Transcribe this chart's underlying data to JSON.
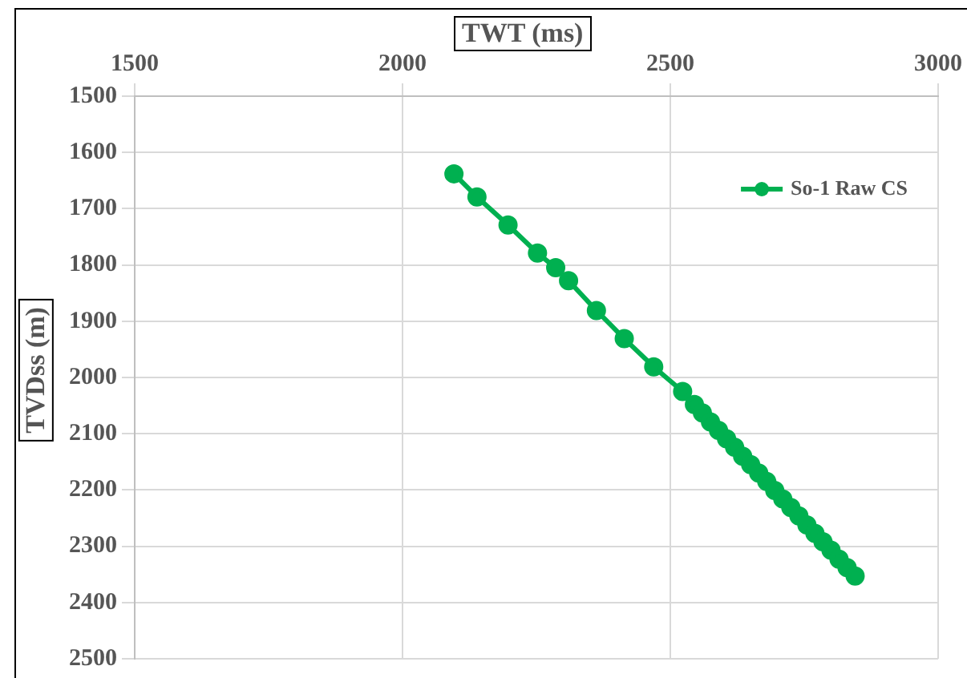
{
  "chart_data": {
    "type": "line",
    "xlabel": "TWT  (ms)",
    "ylabel": "TVDss  (m)",
    "xlim": [
      1500,
      3000
    ],
    "xticks": [
      1500,
      2000,
      2500,
      3000
    ],
    "ylim": [
      2500,
      1500
    ],
    "yticks": [
      1500,
      1600,
      1700,
      1800,
      1900,
      2000,
      2100,
      2200,
      2300,
      2400,
      2500
    ],
    "grid": true,
    "legend": "top right",
    "marker": "circle",
    "line_style": "solid",
    "series": [
      {
        "name": "So-1 Raw CS",
        "color": "#00b050",
        "x": [
          2096,
          2139,
          2197,
          2252,
          2286,
          2310,
          2362,
          2414,
          2469,
          2523,
          2545,
          2560,
          2575,
          2590,
          2605,
          2620,
          2635,
          2650,
          2665,
          2680,
          2695,
          2710,
          2725,
          2740,
          2755,
          2770,
          2785,
          2800,
          2815,
          2830,
          2845
        ],
        "values": [
          1638,
          1679,
          1729,
          1779,
          1805,
          1828,
          1881,
          1931,
          1981,
          2025,
          2048,
          2063,
          2079,
          2094,
          2109,
          2124,
          2140,
          2155,
          2170,
          2185,
          2201,
          2216,
          2231,
          2246,
          2262,
          2277,
          2292,
          2307,
          2323,
          2338,
          2353
        ]
      }
    ]
  }
}
